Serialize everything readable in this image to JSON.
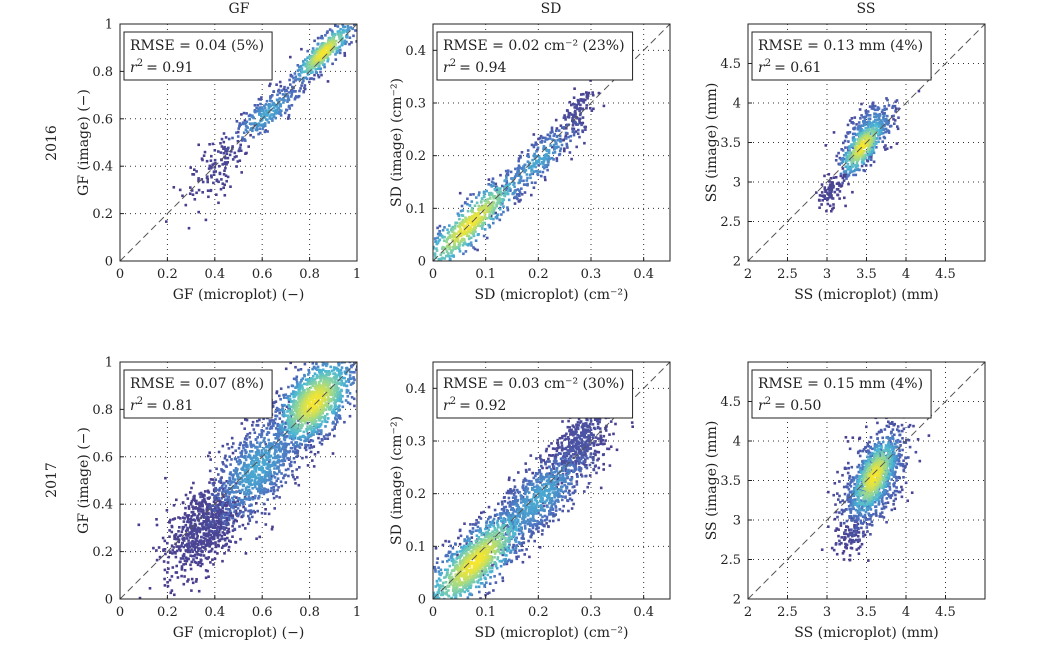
{
  "figure": {
    "column_titles": [
      "GF",
      "SD",
      "SS"
    ],
    "row_labels": [
      "2016",
      "2017"
    ],
    "colors": {
      "low_density": "#4a3c8c",
      "mid_low": "#4c6fbf",
      "mid": "#48b6d6",
      "mid_high": "#8fd69a",
      "high_density": "#f6e62e",
      "one_to_one_line": "#555555",
      "grid": "#333333"
    }
  },
  "chart_data": [
    {
      "type": "scatter",
      "id": "gf-2016",
      "row": "2016",
      "column": "GF",
      "xlabel": "GF (microplot) (−)",
      "ylabel": "GF (image) (−)",
      "xlim": [
        0,
        1
      ],
      "ylim": [
        0,
        1
      ],
      "xticks": [
        0,
        0.2,
        0.4,
        0.6,
        0.8,
        1
      ],
      "yticks": [
        0,
        0.2,
        0.4,
        0.6,
        0.8,
        1
      ],
      "xticklabels": [
        "0",
        "0.2",
        "0.4",
        "0.6",
        "0.8",
        "1"
      ],
      "yticklabels": [
        "0",
        "0.2",
        "0.4",
        "0.6",
        "0.8",
        "1"
      ],
      "stats": {
        "rmse": "RMSE = 0.04 (5%)",
        "r2_label": "r",
        "r2_value": "= 0.91"
      },
      "grid": true,
      "one_to_one_line": true,
      "clusters": [
        {
          "cx": 0.42,
          "cy": 0.4,
          "sx": 0.07,
          "sy": 0.08,
          "rho": 0.6,
          "n": 130,
          "density": 0.05
        },
        {
          "cx": 0.62,
          "cy": 0.62,
          "sx": 0.08,
          "sy": 0.07,
          "rho": 0.8,
          "n": 260,
          "density": 0.45
        },
        {
          "cx": 0.86,
          "cy": 0.88,
          "sx": 0.06,
          "sy": 0.06,
          "rho": 0.85,
          "n": 420,
          "density": 1.0
        }
      ]
    },
    {
      "type": "scatter",
      "id": "sd-2016",
      "row": "2016",
      "column": "SD",
      "xlabel": "SD (microplot) (cm⁻²)",
      "ylabel": "SD (image) (cm⁻²)",
      "xlim": [
        0,
        0.45
      ],
      "ylim": [
        0,
        0.45
      ],
      "xticks": [
        0,
        0.1,
        0.2,
        0.3,
        0.4
      ],
      "yticks": [
        0,
        0.1,
        0.2,
        0.3,
        0.4
      ],
      "xticklabels": [
        "0",
        "0.1",
        "0.2",
        "0.3",
        "0.4"
      ],
      "yticklabels": [
        "0",
        "0.1",
        "0.2",
        "0.3",
        "0.4"
      ],
      "stats": {
        "rmse": "RMSE = 0.02 cm⁻² (23%)",
        "r2_label": "r",
        "r2_value": "= 0.94"
      },
      "grid": true,
      "one_to_one_line": true,
      "clusters": [
        {
          "cx": 0.07,
          "cy": 0.07,
          "sx": 0.05,
          "sy": 0.05,
          "rho": 0.9,
          "n": 560,
          "density": 1.0
        },
        {
          "cx": 0.2,
          "cy": 0.19,
          "sx": 0.04,
          "sy": 0.04,
          "rho": 0.85,
          "n": 260,
          "density": 0.45
        },
        {
          "cx": 0.27,
          "cy": 0.28,
          "sx": 0.02,
          "sy": 0.03,
          "rho": 0.7,
          "n": 110,
          "density": 0.08
        }
      ]
    },
    {
      "type": "scatter",
      "id": "ss-2016",
      "row": "2016",
      "column": "SS",
      "xlabel": "SS (microplot) (mm)",
      "ylabel": "SS (image) (mm)",
      "xlim": [
        2,
        5
      ],
      "ylim": [
        2,
        5
      ],
      "xticks": [
        2,
        2.5,
        3,
        3.5,
        4,
        4.5
      ],
      "yticks": [
        2,
        2.5,
        3,
        3.5,
        4,
        4.5
      ],
      "xticklabels": [
        "2",
        "2.5",
        "3",
        "3.5",
        "4",
        "4.5"
      ],
      "yticklabels": [
        "2",
        "2.5",
        "3",
        "3.5",
        "4",
        "4.5"
      ],
      "stats": {
        "rmse": "RMSE = 0.13 mm (4%)",
        "r2_label": "r",
        "r2_value": "= 0.61"
      },
      "grid": true,
      "one_to_one_line": true,
      "clusters": [
        {
          "cx": 3.45,
          "cy": 3.45,
          "sx": 0.14,
          "sy": 0.18,
          "rho": 0.7,
          "n": 420,
          "density": 1.0
        },
        {
          "cx": 3.55,
          "cy": 3.65,
          "sx": 0.18,
          "sy": 0.2,
          "rho": 0.6,
          "n": 220,
          "density": 0.45
        },
        {
          "cx": 3.05,
          "cy": 2.85,
          "sx": 0.1,
          "sy": 0.12,
          "rho": 0.4,
          "n": 90,
          "density": 0.05
        }
      ]
    },
    {
      "type": "scatter",
      "id": "gf-2017",
      "row": "2017",
      "column": "GF",
      "xlabel": "GF (microplot) (−)",
      "ylabel": "GF (image) (−)",
      "xlim": [
        0,
        1
      ],
      "ylim": [
        0,
        1
      ],
      "xticks": [
        0,
        0.2,
        0.4,
        0.6,
        0.8,
        1
      ],
      "yticks": [
        0,
        0.2,
        0.4,
        0.6,
        0.8,
        1
      ],
      "xticklabels": [
        "0",
        "0.2",
        "0.4",
        "0.6",
        "0.8",
        "1"
      ],
      "yticklabels": [
        "0",
        "0.2",
        "0.4",
        "0.6",
        "0.8",
        "1"
      ],
      "stats": {
        "rmse": "RMSE = 0.07 (8%)",
        "r2_label": "r",
        "r2_value": "= 0.81"
      },
      "grid": true,
      "one_to_one_line": true,
      "clusters": [
        {
          "cx": 0.35,
          "cy": 0.3,
          "sx": 0.08,
          "sy": 0.1,
          "rho": 0.5,
          "n": 700,
          "density": 0.05
        },
        {
          "cx": 0.58,
          "cy": 0.55,
          "sx": 0.1,
          "sy": 0.12,
          "rho": 0.6,
          "n": 900,
          "density": 0.45
        },
        {
          "cx": 0.82,
          "cy": 0.83,
          "sx": 0.08,
          "sy": 0.09,
          "rho": 0.55,
          "n": 1200,
          "density": 1.0
        }
      ]
    },
    {
      "type": "scatter",
      "id": "sd-2017",
      "row": "2017",
      "column": "SD",
      "xlabel": "SD (microplot) (cm⁻²)",
      "ylabel": "SD (image) (cm⁻²)",
      "xlim": [
        0,
        0.45
      ],
      "ylim": [
        0,
        0.45
      ],
      "xticks": [
        0,
        0.1,
        0.2,
        0.3,
        0.4
      ],
      "yticks": [
        0,
        0.1,
        0.2,
        0.3,
        0.4
      ],
      "xticklabels": [
        "0",
        "0.1",
        "0.2",
        "0.3",
        "0.4"
      ],
      "yticklabels": [
        "0",
        "0.1",
        "0.2",
        "0.3",
        "0.4"
      ],
      "stats": {
        "rmse": "RMSE = 0.03 cm⁻² (30%)",
        "r2_label": "r",
        "r2_value": "= 0.92"
      },
      "grid": true,
      "one_to_one_line": true,
      "clusters": [
        {
          "cx": 0.08,
          "cy": 0.07,
          "sx": 0.05,
          "sy": 0.05,
          "rho": 0.8,
          "n": 1100,
          "density": 1.0
        },
        {
          "cx": 0.2,
          "cy": 0.19,
          "sx": 0.05,
          "sy": 0.05,
          "rho": 0.75,
          "n": 800,
          "density": 0.45
        },
        {
          "cx": 0.28,
          "cy": 0.3,
          "sx": 0.03,
          "sy": 0.04,
          "rho": 0.6,
          "n": 450,
          "density": 0.12
        }
      ]
    },
    {
      "type": "scatter",
      "id": "ss-2017",
      "row": "2017",
      "column": "SS",
      "xlabel": "SS (microplot) (mm)",
      "ylabel": "SS (image) (mm)",
      "xlim": [
        2,
        5
      ],
      "ylim": [
        2,
        5
      ],
      "xticks": [
        2,
        2.5,
        3,
        3.5,
        4,
        4.5
      ],
      "yticks": [
        2,
        2.5,
        3,
        3.5,
        4,
        4.5
      ],
      "xticklabels": [
        "2",
        "2.5",
        "3",
        "3.5",
        "4",
        "4.5"
      ],
      "yticklabels": [
        "2",
        "2.5",
        "3",
        "3.5",
        "4",
        "4.5"
      ],
      "stats": {
        "rmse": "RMSE = 0.15 mm (4%)",
        "r2_label": "r",
        "r2_value": "= 0.50"
      },
      "grid": true,
      "one_to_one_line": true,
      "clusters": [
        {
          "cx": 3.6,
          "cy": 3.55,
          "sx": 0.15,
          "sy": 0.25,
          "rho": 0.6,
          "n": 700,
          "density": 1.0
        },
        {
          "cx": 3.6,
          "cy": 3.5,
          "sx": 0.22,
          "sy": 0.35,
          "rho": 0.5,
          "n": 600,
          "density": 0.4
        },
        {
          "cx": 3.3,
          "cy": 2.8,
          "sx": 0.1,
          "sy": 0.12,
          "rho": 0.3,
          "n": 80,
          "density": 0.05
        }
      ]
    }
  ]
}
